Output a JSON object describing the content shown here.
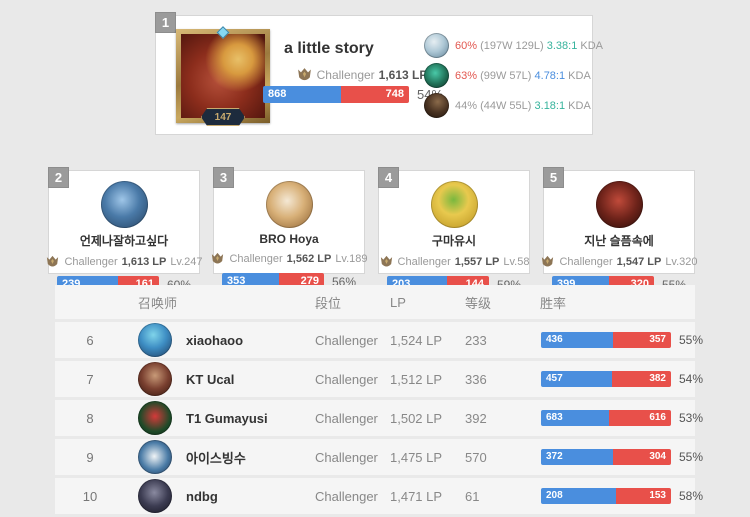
{
  "colors": {
    "win_blue": "#4a8ede",
    "loss_red": "#e8504a"
  },
  "top_player": {
    "rank": "1",
    "name": "a little story",
    "level": "147",
    "tier": "Challenger",
    "lp": "1,613 LP",
    "wins": "868",
    "losses": "748",
    "rate": "54%",
    "pct": 53.7,
    "champions": [
      {
        "rate": "60%",
        "rate_color": "#e2574f",
        "record": "(197W 129L)",
        "kda": "3.38:1",
        "kda_color": "#36b39c",
        "kda_label": "KDA"
      },
      {
        "rate": "63%",
        "rate_color": "#e2574f",
        "record": "(99W 57L)",
        "kda": "4.78:1",
        "kda_color": "#4a8ede",
        "kda_label": "KDA"
      },
      {
        "rate": "44%",
        "rate_color": "#9a9a9a",
        "record": "(44W 55L)",
        "kda": "3.18:1",
        "kda_color": "#36b39c",
        "kda_label": "KDA"
      }
    ]
  },
  "cards": [
    {
      "rank": "2",
      "name": "언제나잘하고싶다",
      "tier": "Challenger",
      "lp": "1,613 LP",
      "level": "Lv.247",
      "wins": "239",
      "losses": "161",
      "rate": "60%",
      "pct": 59.8
    },
    {
      "rank": "3",
      "name": "BRO Hoya",
      "tier": "Challenger",
      "lp": "1,562 LP",
      "level": "Lv.189",
      "wins": "353",
      "losses": "279",
      "rate": "56%",
      "pct": 55.9
    },
    {
      "rank": "4",
      "name": "구마유시",
      "tier": "Challenger",
      "lp": "1,557 LP",
      "level": "Lv.58",
      "wins": "203",
      "losses": "144",
      "rate": "59%",
      "pct": 58.5
    },
    {
      "rank": "5",
      "name": "지난 슬픔속에",
      "tier": "Challenger",
      "lp": "1,547 LP",
      "level": "Lv.320",
      "wins": "399",
      "losses": "320",
      "rate": "55%",
      "pct": 55.5
    }
  ],
  "table": {
    "headers": {
      "summoner": "召唤师",
      "tier": "段位",
      "lp": "LP",
      "level": "等级",
      "winrate": "胜率"
    },
    "rows": [
      {
        "rank": "6",
        "name": "xiaohaoo",
        "tier": "Challenger",
        "lp": "1,524 LP",
        "level": "233",
        "wins": "436",
        "losses": "357",
        "rate": "55%",
        "pct": 55.0
      },
      {
        "rank": "7",
        "name": "KT Ucal",
        "tier": "Challenger",
        "lp": "1,512 LP",
        "level": "336",
        "wins": "457",
        "losses": "382",
        "rate": "54%",
        "pct": 54.5
      },
      {
        "rank": "8",
        "name": "T1 Gumayusi",
        "tier": "Challenger",
        "lp": "1,502 LP",
        "level": "392",
        "wins": "683",
        "losses": "616",
        "rate": "53%",
        "pct": 52.6
      },
      {
        "rank": "9",
        "name": "아이스빙수",
        "tier": "Challenger",
        "lp": "1,475 LP",
        "level": "570",
        "wins": "372",
        "losses": "304",
        "rate": "55%",
        "pct": 55.0
      },
      {
        "rank": "10",
        "name": "ndbg",
        "tier": "Challenger",
        "lp": "1,471 LP",
        "level": "61",
        "wins": "208",
        "losses": "153",
        "rate": "58%",
        "pct": 57.6
      }
    ]
  }
}
